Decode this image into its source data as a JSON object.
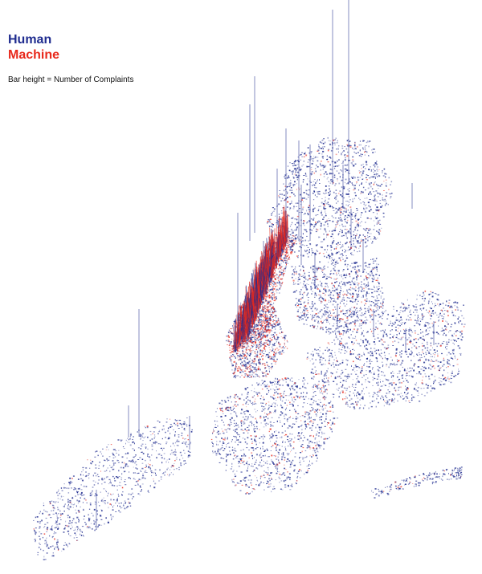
{
  "legend": {
    "human_label": "Human",
    "machine_label": "Machine",
    "note": "Bar height  = Number of Complaints",
    "colors": {
      "human": "#1f2c8f",
      "machine": "#e8291c"
    }
  }
}
